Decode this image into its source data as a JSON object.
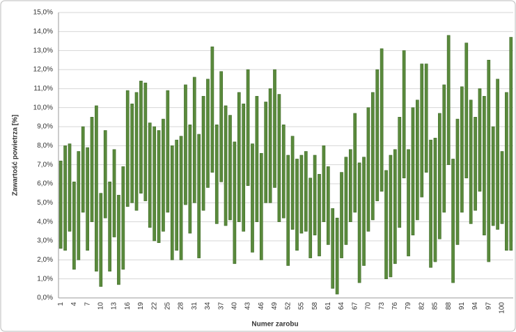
{
  "chart_data": {
    "type": "range-bar",
    "y_label": "Zawartość powietrza [%]",
    "x_label": "Numer zarobu",
    "color": "#5a8a3c",
    "grid": true,
    "categories": [
      1,
      null,
      null,
      4,
      null,
      null,
      7,
      null,
      null,
      10,
      null,
      null,
      13,
      null,
      null,
      16,
      null,
      null,
      19,
      null,
      null,
      22,
      null,
      null,
      25,
      null,
      null,
      28,
      null,
      null,
      31,
      null,
      null,
      34,
      null,
      null,
      37,
      null,
      null,
      40,
      null,
      null,
      43,
      null,
      null,
      46,
      null,
      null,
      49,
      null,
      null,
      52,
      null,
      null,
      55,
      null,
      null,
      58,
      null,
      null,
      61,
      null,
      null,
      64,
      null,
      null,
      67,
      null,
      null,
      70,
      null,
      null,
      73,
      null,
      null,
      76,
      null,
      null,
      79,
      null,
      null,
      82,
      null,
      null,
      85,
      null,
      null,
      88,
      null,
      null,
      91,
      null,
      null,
      94,
      null,
      null,
      97,
      null,
      null,
      100,
      null,
      null
    ],
    "low": [
      2.6,
      2.5,
      3.5,
      1.5,
      2.0,
      4.5,
      2.5,
      4.0,
      1.4,
      0.6,
      4.2,
      1.4,
      3.2,
      0.7,
      1.5,
      4.8,
      5.0,
      4.6,
      5.5,
      5.1,
      3.7,
      3.0,
      2.9,
      3.5,
      4.5,
      2.0,
      2.5,
      2.0,
      4.9,
      3.4,
      5.0,
      2.1,
      4.6,
      5.8,
      6.6,
      3.9,
      6.1,
      3.8,
      4.1,
      1.8,
      4.0,
      3.5,
      5.9,
      2.4,
      4.0,
      2.0,
      5.0,
      5.0,
      5.8,
      4.0,
      4.2,
      1.7,
      3.6,
      2.5,
      3.4,
      3.5,
      2.1,
      3.3,
      2.2,
      4.0,
      2.8,
      0.5,
      0.2,
      2.1,
      2.8,
      4.0,
      4.5,
      0.8,
      1.7,
      3.5,
      4.1,
      5.1,
      5.6,
      1.0,
      1.1,
      1.8,
      3.7,
      6.3,
      2.2,
      3.3,
      4.1,
      5.3,
      6.6,
      1.6,
      1.9,
      3.1,
      4.5,
      7.0,
      0.8,
      2.8,
      4.5,
      6.3,
      3.9,
      4.6,
      5.6,
      3.3,
      1.9,
      3.8,
      3.6,
      3.9,
      2.5,
      2.5
    ],
    "high": [
      7.2,
      8.0,
      8.1,
      6.1,
      7.7,
      9.0,
      7.9,
      9.5,
      10.1,
      5.5,
      8.8,
      6.1,
      7.8,
      5.4,
      6.9,
      10.9,
      10.2,
      10.8,
      11.4,
      11.3,
      9.2,
      9.0,
      8.8,
      9.4,
      10.9,
      8.0,
      8.3,
      8.5,
      11.2,
      9.1,
      11.6,
      8.6,
      10.6,
      11.5,
      13.2,
      9.1,
      11.9,
      10.1,
      9.6,
      8.2,
      10.8,
      10.2,
      12.0,
      8.1,
      10.6,
      7.6,
      10.3,
      11.0,
      12.0,
      10.7,
      9.1,
      7.5,
      8.5,
      7.3,
      7.5,
      7.7,
      6.3,
      7.5,
      6.5,
      8.0,
      6.9,
      4.7,
      4.2,
      6.6,
      7.4,
      7.8,
      9.7,
      7.1,
      7.4,
      10.0,
      10.8,
      12.0,
      13.1,
      6.7,
      7.5,
      7.8,
      9.5,
      13.0,
      7.8,
      10.0,
      10.4,
      12.3,
      12.3,
      8.3,
      8.4,
      9.7,
      11.2,
      13.8,
      7.3,
      9.4,
      11.1,
      13.4,
      10.4,
      9.5,
      11.0,
      10.6,
      12.5,
      9.0,
      11.5,
      7.7,
      10.8,
      13.7
    ],
    "ylim": [
      0,
      15
    ],
    "yticks": [
      {
        "value": 0,
        "label": "0,0%"
      },
      {
        "value": 1,
        "label": "1,0%"
      },
      {
        "value": 2,
        "label": "2,0%"
      },
      {
        "value": 3,
        "label": "3,0%"
      },
      {
        "value": 4,
        "label": "4,0%"
      },
      {
        "value": 5,
        "label": "5,0%"
      },
      {
        "value": 6,
        "label": "6,0%"
      },
      {
        "value": 7,
        "label": "7,0%"
      },
      {
        "value": 8,
        "label": "8,0%"
      },
      {
        "value": 9,
        "label": "9,0%"
      },
      {
        "value": 10,
        "label": "10,0%"
      },
      {
        "value": 11,
        "label": "11,0%"
      },
      {
        "value": 12,
        "label": "12,0%"
      },
      {
        "value": 13,
        "label": "13,0%"
      },
      {
        "value": 14,
        "label": "14,0%"
      },
      {
        "value": 15,
        "label": "15,0%"
      }
    ]
  }
}
